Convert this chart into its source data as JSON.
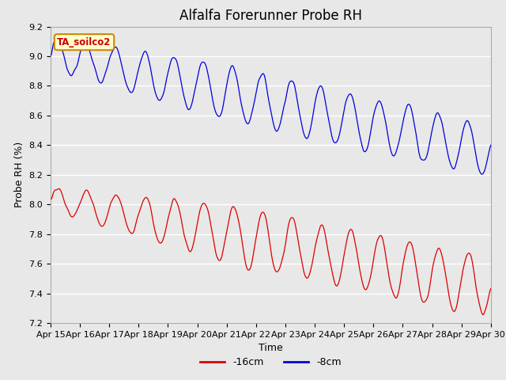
{
  "title": "Alfalfa Forerunner Probe RH",
  "ylabel": "Probe RH (%)",
  "xlabel": "Time",
  "ylim": [
    7.2,
    9.2
  ],
  "xlim": [
    0,
    15
  ],
  "background_color": "#e8e8e8",
  "plot_bg_color": "#e8e8e8",
  "line_color_8cm": "#0000dd",
  "line_color_16cm": "#dd0000",
  "legend_labels": [
    "-16cm",
    "-8cm"
  ],
  "legend_colors": [
    "#dd0000",
    "#0000dd"
  ],
  "station_label": "TA_soilco2",
  "station_label_bg": "#ffffcc",
  "station_label_border": "#cc8800",
  "station_label_color": "#cc0000",
  "x_tick_labels": [
    "Apr 15",
    "Apr 16",
    "Apr 17",
    "Apr 18",
    "Apr 19",
    "Apr 20",
    "Apr 21",
    "Apr 22",
    "Apr 23",
    "Apr 24",
    "Apr 25",
    "Apr 26",
    "Apr 27",
    "Apr 28",
    "Apr 29",
    "Apr 30"
  ],
  "yticks": [
    7.2,
    7.4,
    7.6,
    7.8,
    8.0,
    8.2,
    8.4,
    8.6,
    8.8,
    9.0,
    9.2
  ],
  "title_fontsize": 12,
  "axis_label_fontsize": 9,
  "tick_fontsize": 8,
  "figsize": [
    6.4,
    4.8
  ],
  "dpi": 100
}
